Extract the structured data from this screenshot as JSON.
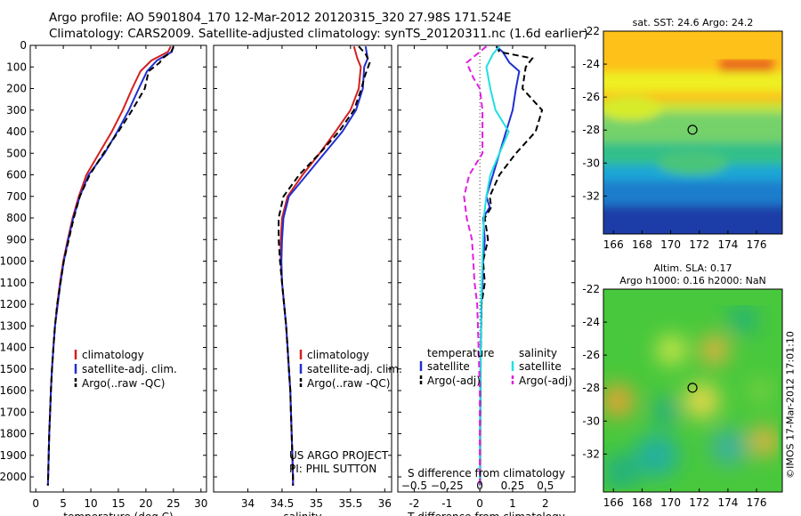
{
  "header": {
    "line1": "Argo profile: AO 5901804_170 12-Mar-2012 20120315_320 27.98S 171.524E",
    "line2": "Climatology: CARS2009. Satellite-adjusted climatology: synTS_20120311.nc (1.6d earlier)"
  },
  "colors": {
    "climatology": "#d42020",
    "satellite": "#1f2fd0",
    "argo": "#000000",
    "sal_satellite": "#20e0e0",
    "sal_argo": "#e020e0"
  },
  "depth_axis": {
    "ticks": [
      0,
      100,
      200,
      300,
      400,
      500,
      600,
      700,
      800,
      900,
      1000,
      1100,
      1200,
      1300,
      1400,
      1500,
      1600,
      1700,
      1800,
      1900,
      2000
    ]
  },
  "chart_data": [
    {
      "type": "line",
      "xlabel": "temperature (deg C)",
      "xlim": [
        -1,
        31
      ],
      "ylim": [
        2070,
        0
      ],
      "xticks": [
        0,
        5,
        10,
        15,
        20,
        25,
        30
      ],
      "legend": [
        "climatology",
        "satellite-adj. clim.",
        "Argo(..raw -QC)"
      ],
      "series": [
        {
          "name": "climatology",
          "style": "solid",
          "colorKey": "climatology",
          "points": [
            [
              24.5,
              5
            ],
            [
              24,
              30
            ],
            [
              21,
              70
            ],
            [
              19,
              120
            ],
            [
              17.5,
              200
            ],
            [
              15.8,
              300
            ],
            [
              13.8,
              400
            ],
            [
              11.5,
              500
            ],
            [
              9.2,
              600
            ],
            [
              7.8,
              700
            ],
            [
              6.7,
              800
            ],
            [
              5.8,
              900
            ],
            [
              5,
              1000
            ],
            [
              4.4,
              1100
            ],
            [
              3.9,
              1200
            ],
            [
              3.5,
              1300
            ],
            [
              3.2,
              1400
            ],
            [
              2.95,
              1500
            ],
            [
              2.75,
              1600
            ],
            [
              2.6,
              1700
            ],
            [
              2.45,
              1800
            ],
            [
              2.35,
              1900
            ],
            [
              2.25,
              2000
            ],
            [
              2.2,
              2040
            ]
          ]
        },
        {
          "name": "satellite-adj. clim.",
          "style": "solid",
          "colorKey": "satellite",
          "points": [
            [
              25,
              5
            ],
            [
              24.7,
              30
            ],
            [
              22,
              70
            ],
            [
              20.2,
              120
            ],
            [
              18.7,
              200
            ],
            [
              16.9,
              300
            ],
            [
              14.8,
              400
            ],
            [
              12.5,
              500
            ],
            [
              9.6,
              600
            ],
            [
              8,
              700
            ],
            [
              6.8,
              800
            ],
            [
              5.9,
              900
            ],
            [
              5.1,
              1000
            ],
            [
              4.5,
              1100
            ],
            [
              4,
              1200
            ],
            [
              3.5,
              1300
            ],
            [
              3.2,
              1400
            ],
            [
              2.95,
              1500
            ],
            [
              2.75,
              1600
            ],
            [
              2.6,
              1700
            ],
            [
              2.45,
              1800
            ],
            [
              2.35,
              1900
            ],
            [
              2.25,
              2000
            ],
            [
              2.2,
              2040
            ]
          ]
        },
        {
          "name": "Argo(..raw -QC)",
          "style": "dashed",
          "colorKey": "argo",
          "points": [
            [
              25,
              5
            ],
            [
              24.6,
              30
            ],
            [
              23,
              60
            ],
            [
              22.5,
              80
            ],
            [
              20.5,
              120
            ],
            [
              19.8,
              200
            ],
            [
              17.5,
              300
            ],
            [
              15,
              400
            ],
            [
              12.3,
              500
            ],
            [
              9.8,
              600
            ],
            [
              8,
              700
            ],
            [
              6.9,
              800
            ],
            [
              6,
              900
            ],
            [
              5.1,
              1000
            ],
            [
              4.5,
              1100
            ],
            [
              3.9,
              1200
            ],
            [
              3.5,
              1300
            ],
            [
              3.2,
              1400
            ],
            [
              2.95,
              1500
            ],
            [
              2.75,
              1600
            ],
            [
              2.6,
              1700
            ],
            [
              2.45,
              1800
            ],
            [
              2.35,
              1900
            ],
            [
              2.25,
              2000
            ],
            [
              2.2,
              2040
            ]
          ]
        }
      ]
    },
    {
      "type": "line",
      "xlabel": "salinity",
      "xlim": [
        33.5,
        36.1
      ],
      "ylim": [
        2070,
        0
      ],
      "xticks": [
        34,
        34.5,
        35,
        35.5,
        36
      ],
      "xticklabels": [
        "34",
        "34.5",
        "35",
        "35.5",
        "36"
      ],
      "legend": [
        "climatology",
        "satellite-adj. clim.",
        "Argo(..raw -QC)"
      ],
      "annotation": [
        "US ARGO PROJECT",
        "PI: PHIL SUTTON"
      ],
      "series": [
        {
          "name": "climatology",
          "style": "solid",
          "colorKey": "climatology",
          "points": [
            [
              35.55,
              5
            ],
            [
              35.6,
              60
            ],
            [
              35.65,
              100
            ],
            [
              35.62,
              200
            ],
            [
              35.5,
              300
            ],
            [
              35.28,
              400
            ],
            [
              35.05,
              500
            ],
            [
              34.8,
              600
            ],
            [
              34.58,
              700
            ],
            [
              34.5,
              800
            ],
            [
              34.48,
              900
            ],
            [
              34.48,
              1000
            ],
            [
              34.5,
              1100
            ],
            [
              34.53,
              1200
            ],
            [
              34.56,
              1300
            ],
            [
              34.58,
              1400
            ],
            [
              34.6,
              1500
            ],
            [
              34.62,
              1600
            ],
            [
              34.63,
              1700
            ],
            [
              34.64,
              1800
            ],
            [
              34.65,
              1900
            ],
            [
              34.66,
              2000
            ],
            [
              34.66,
              2040
            ]
          ]
        },
        {
          "name": "satellite-adj. clim.",
          "style": "solid",
          "colorKey": "satellite",
          "points": [
            [
              35.72,
              5
            ],
            [
              35.75,
              60
            ],
            [
              35.7,
              100
            ],
            [
              35.68,
              200
            ],
            [
              35.58,
              300
            ],
            [
              35.38,
              400
            ],
            [
              35.12,
              500
            ],
            [
              34.86,
              600
            ],
            [
              34.6,
              700
            ],
            [
              34.52,
              800
            ],
            [
              34.5,
              900
            ],
            [
              34.49,
              1000
            ],
            [
              34.5,
              1100
            ],
            [
              34.53,
              1200
            ],
            [
              34.56,
              1300
            ],
            [
              34.58,
              1400
            ],
            [
              34.6,
              1500
            ],
            [
              34.62,
              1600
            ],
            [
              34.63,
              1700
            ],
            [
              34.64,
              1800
            ],
            [
              34.65,
              1900
            ],
            [
              34.66,
              2000
            ],
            [
              34.66,
              2040
            ]
          ]
        },
        {
          "name": "Argo(..raw -QC)",
          "style": "dashed",
          "colorKey": "argo",
          "points": [
            [
              35.62,
              5
            ],
            [
              35.72,
              40
            ],
            [
              35.78,
              80
            ],
            [
              35.7,
              150
            ],
            [
              35.66,
              200
            ],
            [
              35.55,
              300
            ],
            [
              35.33,
              400
            ],
            [
              35.05,
              500
            ],
            [
              34.75,
              600
            ],
            [
              34.52,
              700
            ],
            [
              34.45,
              800
            ],
            [
              34.45,
              900
            ],
            [
              34.47,
              1000
            ],
            [
              34.5,
              1100
            ],
            [
              34.53,
              1200
            ],
            [
              34.56,
              1300
            ],
            [
              34.58,
              1400
            ],
            [
              34.6,
              1500
            ],
            [
              34.62,
              1600
            ],
            [
              34.63,
              1700
            ],
            [
              34.64,
              1800
            ],
            [
              34.65,
              1900
            ],
            [
              34.66,
              2000
            ],
            [
              34.66,
              2040
            ]
          ]
        }
      ]
    },
    {
      "type": "line",
      "xlabel": "T difference from climatology",
      "xlabel2": "S difference from climatology",
      "xlim": [
        -2.5,
        2.9
      ],
      "ylim": [
        2070,
        0
      ],
      "xticks": [
        -2,
        -1,
        0,
        1,
        2
      ],
      "sticks": [
        -0.5,
        -0.25,
        0,
        0.25,
        0.5
      ],
      "sticklabels": [
        "−0.5",
        "−0.25",
        "0",
        "0.25",
        "0.5"
      ],
      "legend_temp": {
        "title": "temperature",
        "items": [
          "satellite",
          "Argo(-adj)"
        ]
      },
      "legend_sal": {
        "title": "salinity",
        "items": [
          "satellite",
          "Argo(-adj)"
        ]
      },
      "series": [
        {
          "name": "T satellite",
          "style": "solid",
          "colorKey": "satellite",
          "points": [
            [
              0.5,
              5
            ],
            [
              0.7,
              30
            ],
            [
              0.9,
              80
            ],
            [
              1.2,
              120
            ],
            [
              1.1,
              200
            ],
            [
              1.0,
              300
            ],
            [
              0.8,
              400
            ],
            [
              0.6,
              500
            ],
            [
              0.4,
              600
            ],
            [
              0.2,
              700
            ],
            [
              0.3,
              750
            ],
            [
              0.1,
              800
            ],
            [
              0.15,
              900
            ],
            [
              0.1,
              1000
            ],
            [
              0.08,
              1100
            ],
            [
              0.05,
              1200
            ],
            [
              0.03,
              1400
            ],
            [
              0.02,
              1600
            ],
            [
              0.01,
              1800
            ],
            [
              0.01,
              2040
            ]
          ]
        },
        {
          "name": "T Argo(-adj)",
          "style": "dashed",
          "colorKey": "argo",
          "points": [
            [
              0.5,
              5
            ],
            [
              0.6,
              30
            ],
            [
              1.6,
              60
            ],
            [
              1.4,
              100
            ],
            [
              1.3,
              200
            ],
            [
              1.9,
              300
            ],
            [
              1.7,
              400
            ],
            [
              1.1,
              500
            ],
            [
              0.6,
              600
            ],
            [
              0.3,
              700
            ],
            [
              0.35,
              750
            ],
            [
              0.15,
              800
            ],
            [
              0.25,
              900
            ],
            [
              0.1,
              1000
            ],
            [
              0.15,
              1100
            ],
            [
              0.05,
              1200
            ],
            [
              0.03,
              1400
            ],
            [
              0.02,
              1600
            ],
            [
              0.01,
              1800
            ],
            [
              0.01,
              2040
            ]
          ]
        },
        {
          "name": "S satellite",
          "style": "solid",
          "colorKey": "sal_satellite",
          "points": [
            [
              0.15,
              5
            ],
            [
              0.1,
              40
            ],
            [
              0.05,
              100
            ],
            [
              0.08,
              200
            ],
            [
              0.12,
              300
            ],
            [
              0.22,
              400
            ],
            [
              0.15,
              500
            ],
            [
              0.08,
              600
            ],
            [
              0.05,
              700
            ],
            [
              0.03,
              800
            ],
            [
              0.02,
              1000
            ],
            [
              0.01,
              1200
            ],
            [
              0.005,
              1500
            ],
            [
              0,
              1800
            ],
            [
              0,
              2040
            ]
          ]
        },
        {
          "name": "S Argo(-adj)",
          "style": "dashed",
          "colorKey": "sal_argo",
          "points": [
            [
              0.05,
              5
            ],
            [
              -0.1,
              80
            ],
            [
              -0.05,
              150
            ],
            [
              0,
              200
            ],
            [
              0.02,
              300
            ],
            [
              0.02,
              500
            ],
            [
              -0.08,
              600
            ],
            [
              -0.12,
              700
            ],
            [
              -0.1,
              800
            ],
            [
              -0.06,
              900
            ],
            [
              -0.05,
              1000
            ],
            [
              -0.04,
              1100
            ],
            [
              -0.02,
              1200
            ],
            [
              -0.01,
              1400
            ],
            [
              0,
              1600
            ],
            [
              0,
              1800
            ],
            [
              0,
              2040
            ]
          ]
        }
      ]
    }
  ],
  "maps": {
    "sst": {
      "title": "sat. SST: 24.6 Argo: 24.2"
    },
    "sla": {
      "title1": "Altim. SLA: 0.17",
      "title2": "Argo h1000: 0.16 h2000: NaN"
    },
    "xticks": [
      166,
      168,
      170,
      172,
      174,
      176
    ],
    "yticks": [
      -22,
      -24,
      -26,
      -28,
      -30,
      -32
    ],
    "xlim": [
      165.3,
      177.8
    ],
    "ylim": [
      -22,
      -34.3
    ],
    "marker": {
      "lon": 171.524,
      "lat": -27.98
    }
  },
  "side_label": "©IMOS 17-Mar-2012 17:01:10"
}
